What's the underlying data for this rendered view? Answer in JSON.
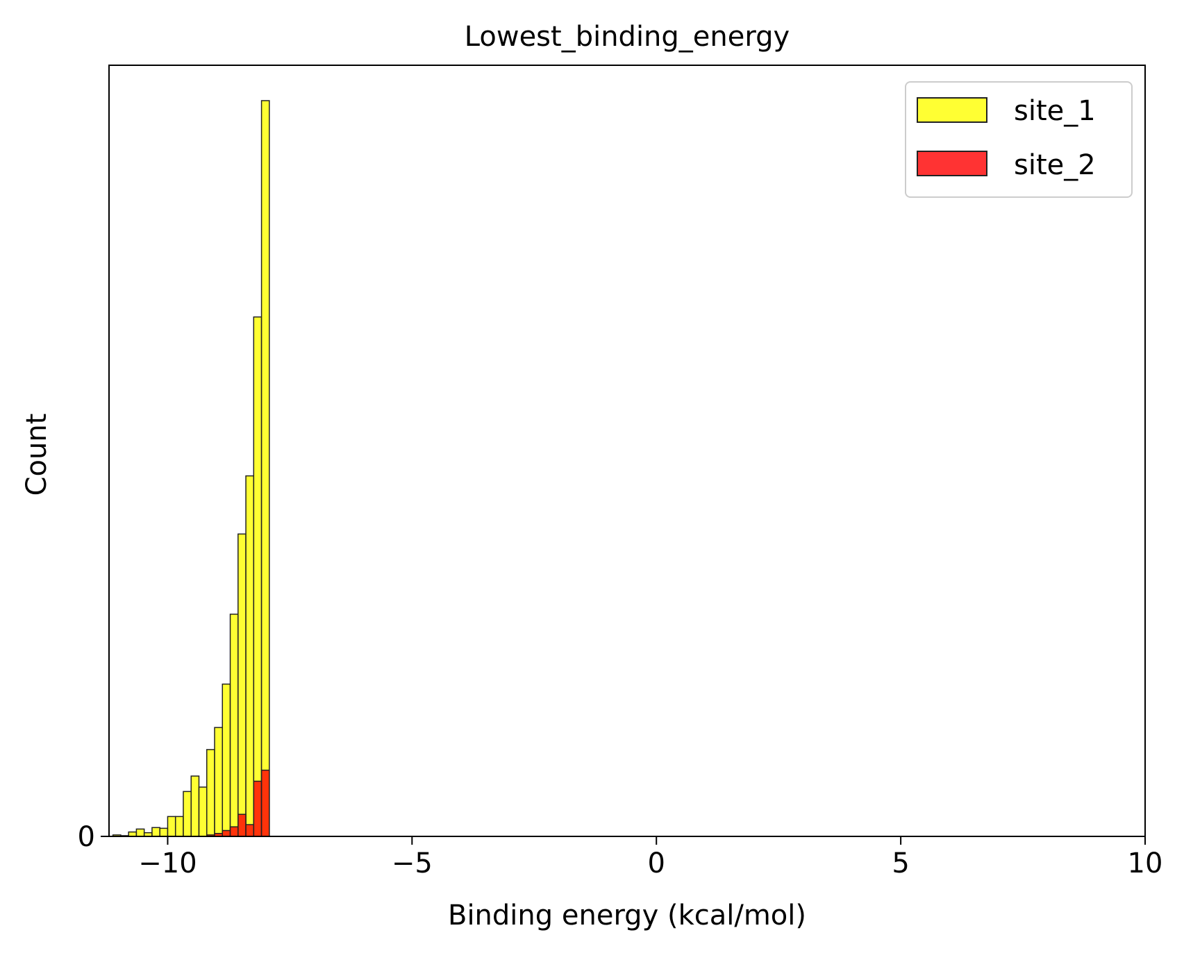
{
  "chart_data": {
    "type": "bar",
    "title": "Lowest_binding_energy",
    "xlabel": "Binding energy (kcal/mol)",
    "ylabel": "Count",
    "xlim": [
      -11.2,
      10
    ],
    "ylim": [
      0,
      1000
    ],
    "x_ticks": [
      -10,
      -5,
      0,
      5,
      10
    ],
    "x_tick_labels": [
      "−10",
      "−5",
      "0",
      "5",
      "10"
    ],
    "y_ticks": [
      0
    ],
    "y_tick_labels": [
      "0"
    ],
    "bin_width": 0.16,
    "legend_position": "top-right",
    "grid": false,
    "series": [
      {
        "name": "site_1",
        "color": "#ffff00",
        "bins": [
          {
            "x": -11.04,
            "count": 2
          },
          {
            "x": -10.88,
            "count": 1
          },
          {
            "x": -10.72,
            "count": 6
          },
          {
            "x": -10.56,
            "count": 10
          },
          {
            "x": -10.4,
            "count": 5
          },
          {
            "x": -10.24,
            "count": 12
          },
          {
            "x": -10.08,
            "count": 11
          },
          {
            "x": -9.92,
            "count": 27
          },
          {
            "x": -9.76,
            "count": 27
          },
          {
            "x": -9.6,
            "count": 61
          },
          {
            "x": -9.44,
            "count": 82
          },
          {
            "x": -9.28,
            "count": 67
          },
          {
            "x": -9.12,
            "count": 118
          },
          {
            "x": -8.96,
            "count": 148
          },
          {
            "x": -8.8,
            "count": 207
          },
          {
            "x": -8.64,
            "count": 302
          },
          {
            "x": -8.48,
            "count": 411
          },
          {
            "x": -8.32,
            "count": 490
          },
          {
            "x": -8.16,
            "count": 706
          },
          {
            "x": -8.0,
            "count": 1000
          }
        ]
      },
      {
        "name": "site_2",
        "color": "#ff0000",
        "bins": [
          {
            "x": -9.12,
            "count": 2
          },
          {
            "x": -8.96,
            "count": 4
          },
          {
            "x": -8.8,
            "count": 8
          },
          {
            "x": -8.64,
            "count": 13
          },
          {
            "x": -8.48,
            "count": 30
          },
          {
            "x": -8.32,
            "count": 16
          },
          {
            "x": -8.16,
            "count": 75
          },
          {
            "x": -8.0,
            "count": 90
          }
        ]
      }
    ]
  }
}
